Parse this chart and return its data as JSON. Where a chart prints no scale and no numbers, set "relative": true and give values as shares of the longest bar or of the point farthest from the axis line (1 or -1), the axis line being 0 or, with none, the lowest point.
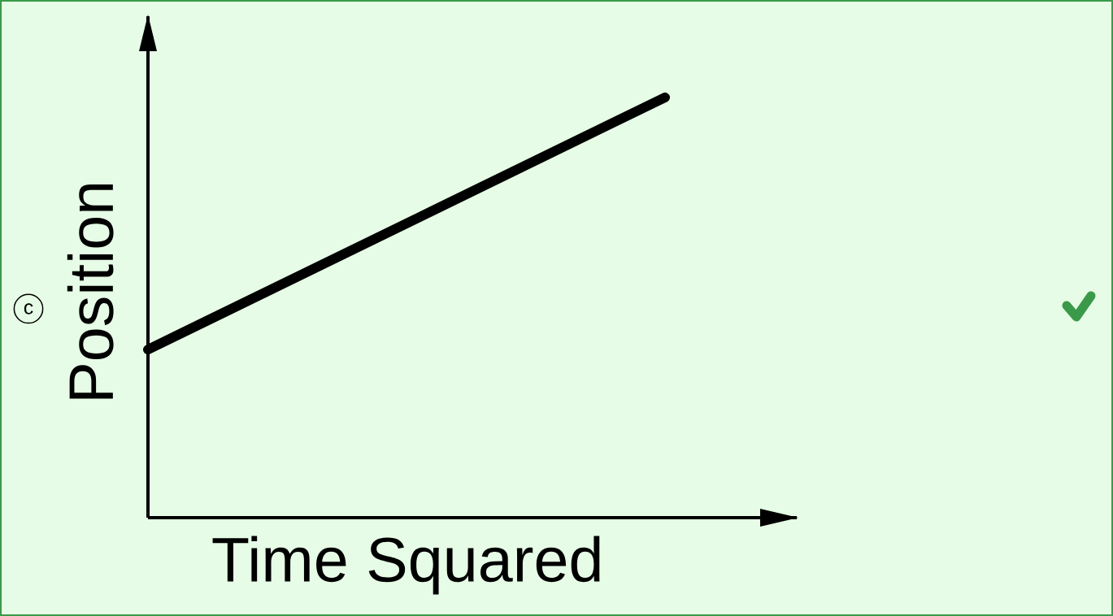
{
  "chart_data": {
    "type": "line",
    "relative": true,
    "categories": [
      null,
      null
    ],
    "xlabel": "Time Squared",
    "ylabel": "Position",
    "series": [
      {
        "color": "#000000",
        "values": [
          0.4,
          1
        ]
      }
    ],
    "annotations": [
      "c"
    ]
  }
}
